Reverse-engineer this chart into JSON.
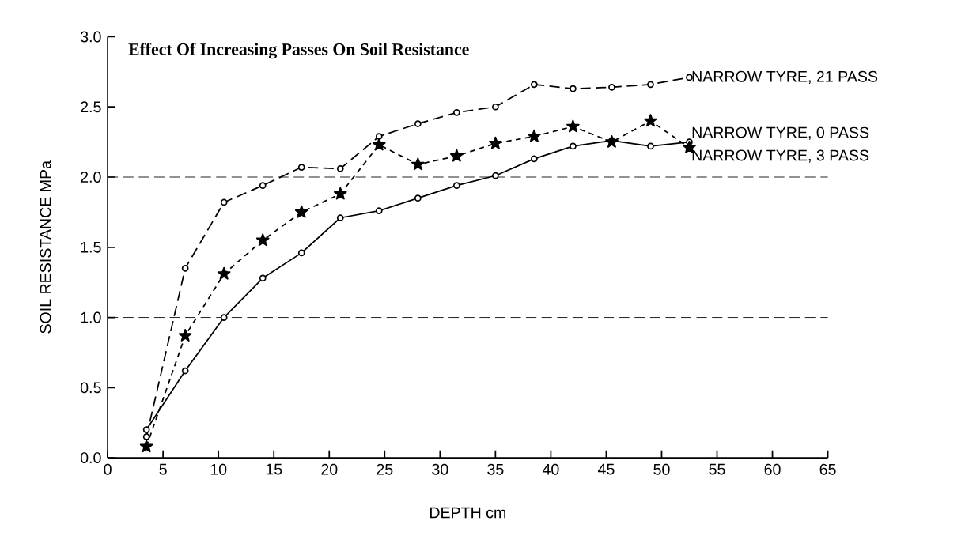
{
  "chart_data": {
    "type": "line",
    "title": "Effect Of Increasing Passes On Soil Resistance",
    "xlabel": "DEPTH cm",
    "ylabel": "SOIL RESISTANCE MPa",
    "x": [
      3.5,
      7,
      10.5,
      14,
      17.5,
      21,
      24.5,
      28,
      31.5,
      35,
      38.5,
      42,
      45.5,
      49,
      52.5
    ],
    "series": [
      {
        "name": "NARROW TYRE, 21 PASS",
        "color": "#000000",
        "marker": "circle",
        "line_style": "dashed",
        "values": [
          0.15,
          1.35,
          1.82,
          1.94,
          2.07,
          2.06,
          2.29,
          2.38,
          2.46,
          2.5,
          2.66,
          2.63,
          2.64,
          2.66,
          2.71
        ]
      },
      {
        "name": "NARROW TYRE, 0 PASS",
        "color": "#000000",
        "marker": "circle",
        "line_style": "solid",
        "values": [
          0.2,
          0.62,
          1.0,
          1.28,
          1.46,
          1.71,
          1.76,
          1.85,
          1.94,
          2.01,
          2.13,
          2.22,
          2.26,
          2.22,
          2.25
        ]
      },
      {
        "name": "NARROW TYRE, 3 PASS",
        "color": "#000000",
        "marker": "star",
        "line_style": "dotted",
        "values": [
          0.08,
          0.87,
          1.31,
          1.55,
          1.75,
          1.88,
          2.23,
          2.09,
          2.15,
          2.24,
          2.29,
          2.36,
          2.25,
          2.4,
          2.21
        ]
      }
    ],
    "ref_lines": [
      {
        "axis": "y",
        "value": 1.0,
        "line_style": "dashed"
      },
      {
        "axis": "y",
        "value": 2.0,
        "line_style": "dashed"
      }
    ],
    "xlim": [
      0,
      65
    ],
    "ylim": [
      0,
      3
    ],
    "xticks": [
      0,
      5,
      10,
      15,
      20,
      25,
      30,
      35,
      40,
      45,
      50,
      55,
      60,
      65
    ],
    "yticks": [
      {
        "value": 0,
        "label": "0.0"
      },
      {
        "value": 0.5,
        "label": "0.5"
      },
      {
        "value": 1,
        "label": "1.0"
      },
      {
        "value": 1.5,
        "label": "1.5"
      },
      {
        "value": 2,
        "label": "2.0"
      },
      {
        "value": 2.5,
        "label": "2.5"
      },
      {
        "value": 3,
        "label": "3.0"
      }
    ],
    "grid": false,
    "legend": false
  }
}
